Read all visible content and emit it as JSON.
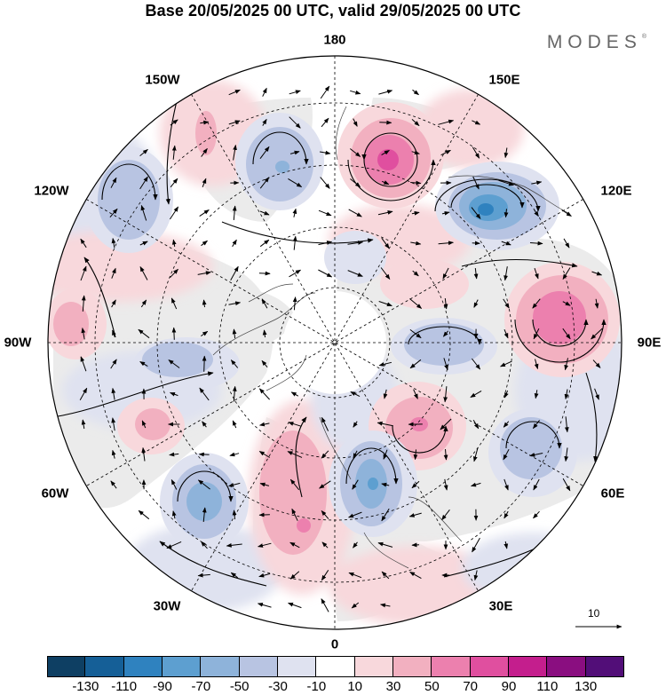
{
  "title": "Base 20/05/2025 00 UTC, valid 29/05/2025 00 UTC",
  "brand": "MODES",
  "brand_mark": "®",
  "longitude_labels": {
    "lon_180": "180",
    "lon_150e": "150E",
    "lon_120e": "120E",
    "lon_90e": "90E",
    "lon_60e": "60E",
    "lon_30e": "30E",
    "lon_0": "0",
    "lon_30w": "30W",
    "lon_60w": "60W",
    "lon_90w": "90W",
    "lon_120w": "120W",
    "lon_150w": "150W"
  },
  "reference_vector": "10",
  "colorbar": {
    "ticks": [
      "-130",
      "-110",
      "-90",
      "-70",
      "-50",
      "-30",
      "-10",
      "10",
      "30",
      "50",
      "70",
      "90",
      "110",
      "130"
    ],
    "colors": [
      "#0e3f63",
      "#155f97",
      "#2f82bf",
      "#5d9fd0",
      "#8eb3da",
      "#b8c4e2",
      "#dfe2f0",
      "#ffffff",
      "#f8d8dc",
      "#f2b0c0",
      "#ec80ae",
      "#e04f9f",
      "#c41e8d",
      "#8a0e80",
      "#520e78"
    ]
  },
  "colors": {
    "land": "#ebebeb",
    "negative_mid": "#b8c4e2",
    "positive_mid": "#f2b0c0"
  },
  "chart_data": {
    "type": "map",
    "projection": "polar-stereographic-north",
    "field": "anomaly",
    "title": "Base 20/05/2025 00 UTC, valid 29/05/2025 00 UTC",
    "colorbar_levels": [
      -130,
      -110,
      -90,
      -70,
      -50,
      -30,
      -10,
      10,
      30,
      50,
      70,
      90,
      110,
      130
    ],
    "anomaly_centers": [
      {
        "location": "North Pacific near 165E",
        "sign": "positive",
        "peak_level": 90
      },
      {
        "location": "East Siberia near 125E",
        "sign": "negative",
        "peak_level": -90
      },
      {
        "location": "Central Siberia near 95E",
        "sign": "positive",
        "peak_level": 70
      },
      {
        "location": "Western Siberia near 75E",
        "sign": "negative",
        "peak_level": -50
      },
      {
        "location": "Ural region near 50E",
        "sign": "positive",
        "peak_level": 50
      },
      {
        "location": "Kazakhstan near 60E",
        "sign": "negative",
        "peak_level": -50
      },
      {
        "location": "Scandinavia / Baltic near 20E",
        "sign": "negative",
        "peak_level": -70
      },
      {
        "location": "Western Europe / NE Atlantic near 10W",
        "sign": "positive",
        "peak_level": 50
      },
      {
        "location": "North Atlantic near 40W",
        "sign": "negative",
        "peak_level": -70
      },
      {
        "location": "Eastern Canada near 70W",
        "sign": "positive",
        "peak_level": 50
      },
      {
        "location": "Gulf of Alaska near 155W",
        "sign": "negative",
        "peak_level": -50
      },
      {
        "location": "Bering Sea near 170W",
        "sign": "positive",
        "peak_level": 30
      },
      {
        "location": "Western North America near 120W",
        "sign": "negative",
        "peak_level": -50
      },
      {
        "location": "Central North America near 95W",
        "sign": "positive",
        "peak_level": 30
      }
    ]
  }
}
